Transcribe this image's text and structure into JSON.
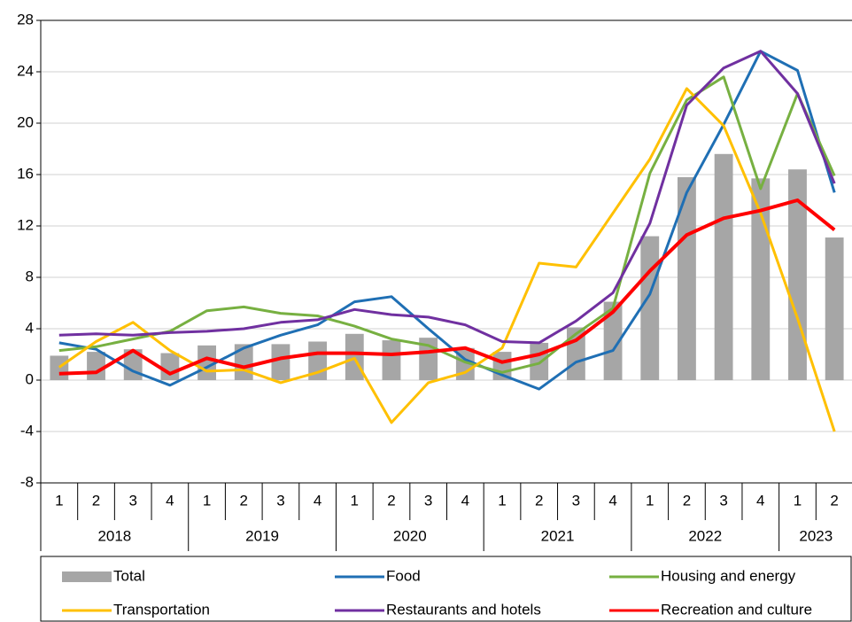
{
  "chart_data": {
    "type": "bar-line",
    "categories": [
      "1",
      "2",
      "3",
      "4",
      "1",
      "2",
      "3",
      "4",
      "1",
      "2",
      "3",
      "4",
      "1",
      "2",
      "3",
      "4",
      "1",
      "2",
      "3",
      "4",
      "1",
      "2"
    ],
    "year_labels": [
      "2018",
      "2019",
      "2020",
      "2021",
      "2022",
      "2023"
    ],
    "ylim": [
      -8,
      28
    ],
    "yticks": [
      -8,
      -4,
      0,
      4,
      8,
      12,
      16,
      20,
      24,
      28
    ],
    "grid": true,
    "series": [
      {
        "name": "Total",
        "kind": "bar",
        "color": "#a6a6a6",
        "values": [
          1.9,
          2.2,
          2.4,
          2.1,
          2.7,
          2.8,
          2.8,
          3.0,
          3.6,
          3.1,
          3.3,
          2.5,
          2.2,
          2.9,
          4.1,
          6.1,
          11.2,
          15.8,
          17.6,
          15.7,
          16.4,
          11.1
        ]
      },
      {
        "name": "Food",
        "kind": "line",
        "color": "#1f6fb4",
        "values": [
          2.9,
          2.4,
          0.7,
          -0.4,
          1.0,
          2.5,
          3.5,
          4.3,
          6.1,
          6.5,
          4.0,
          1.6,
          0.4,
          -0.7,
          1.4,
          2.3,
          6.7,
          14.6,
          19.9,
          25.6,
          24.1,
          14.6
        ]
      },
      {
        "name": "Housing and energy",
        "kind": "line",
        "color": "#77b041",
        "values": [
          2.3,
          2.6,
          3.2,
          3.8,
          5.4,
          5.7,
          5.2,
          5.0,
          4.2,
          3.2,
          2.7,
          1.4,
          0.6,
          1.3,
          3.6,
          5.6,
          16.1,
          21.8,
          23.6,
          14.9,
          22.3,
          15.9
        ]
      },
      {
        "name": "Transportation",
        "kind": "line",
        "color": "#ffc000",
        "values": [
          1.0,
          3.0,
          4.5,
          2.3,
          0.7,
          0.8,
          -0.2,
          0.6,
          1.7,
          -3.3,
          -0.2,
          0.6,
          2.5,
          9.1,
          8.8,
          13.0,
          17.2,
          22.7,
          19.8,
          13.0,
          4.8,
          -4.0
        ]
      },
      {
        "name": "Restaurants and hotels",
        "kind": "line",
        "color": "#7030a0",
        "values": [
          3.5,
          3.6,
          3.5,
          3.7,
          3.8,
          4.0,
          4.5,
          4.7,
          5.5,
          5.1,
          4.9,
          4.3,
          3.0,
          2.9,
          4.6,
          6.8,
          12.2,
          21.4,
          24.3,
          25.6,
          22.3,
          15.3
        ]
      },
      {
        "name": "Recreation and culture",
        "kind": "line",
        "color": "#ff0000",
        "values": [
          0.5,
          0.6,
          2.3,
          0.5,
          1.7,
          1.0,
          1.7,
          2.1,
          2.1,
          2.0,
          2.2,
          2.5,
          1.4,
          2.0,
          3.1,
          5.3,
          8.5,
          11.3,
          12.6,
          13.2,
          14.0,
          11.7
        ]
      }
    ]
  }
}
